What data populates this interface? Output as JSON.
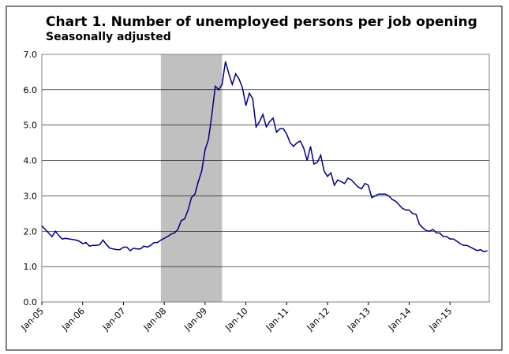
{
  "chart_data": {
    "type": "line",
    "title": "Chart 1. Number of unemployed persons per job opening",
    "subtitle": "Seasonally adjusted",
    "categories": [
      "Jan-05",
      null,
      null,
      null,
      null,
      null,
      null,
      null,
      null,
      null,
      null,
      null,
      "Jan-06",
      null,
      null,
      null,
      null,
      null,
      null,
      null,
      null,
      null,
      null,
      null,
      "Jan-07",
      null,
      null,
      null,
      null,
      null,
      null,
      null,
      null,
      null,
      null,
      null,
      "Jan-08",
      null,
      null,
      null,
      null,
      null,
      null,
      null,
      null,
      null,
      null,
      null,
      "Jan-09",
      null,
      null,
      null,
      null,
      null,
      null,
      null,
      null,
      null,
      null,
      null,
      "Jan-10",
      null,
      null,
      null,
      null,
      null,
      null,
      null,
      null,
      null,
      null,
      null,
      "Jan-11",
      null,
      null,
      null,
      null,
      null,
      null,
      null,
      null,
      null,
      null,
      null,
      "Jan-12",
      null,
      null,
      null,
      null,
      null,
      null,
      null,
      null,
      null,
      null,
      null,
      "Jan-13",
      null,
      null,
      null,
      null,
      null,
      null,
      null,
      null,
      null,
      null,
      null,
      "Jan-14",
      null,
      null,
      null,
      null,
      null,
      null,
      null,
      null,
      null,
      null,
      null,
      "Jan-15",
      null,
      null,
      null,
      null,
      null,
      null,
      null,
      null,
      null,
      null,
      null
    ],
    "values": [
      2.15,
      2.05,
      1.95,
      1.85,
      2.0,
      1.88,
      1.78,
      1.8,
      1.78,
      1.77,
      1.75,
      1.72,
      1.65,
      1.68,
      1.58,
      1.6,
      1.6,
      1.62,
      1.75,
      1.62,
      1.52,
      1.5,
      1.48,
      1.48,
      1.55,
      1.55,
      1.45,
      1.52,
      1.5,
      1.5,
      1.58,
      1.55,
      1.6,
      1.68,
      1.68,
      1.75,
      1.8,
      1.85,
      1.92,
      1.95,
      2.05,
      2.3,
      2.35,
      2.6,
      2.95,
      3.05,
      3.4,
      3.7,
      4.3,
      4.6,
      5.3,
      6.1,
      6.0,
      6.15,
      6.8,
      6.45,
      6.15,
      6.45,
      6.3,
      6.05,
      5.55,
      5.9,
      5.75,
      4.95,
      5.1,
      5.3,
      4.95,
      5.1,
      5.2,
      4.8,
      4.9,
      4.9,
      4.75,
      4.5,
      4.4,
      4.5,
      4.55,
      4.35,
      4.0,
      4.4,
      3.9,
      3.95,
      4.15,
      3.7,
      3.55,
      3.65,
      3.3,
      3.45,
      3.4,
      3.35,
      3.5,
      3.45,
      3.35,
      3.25,
      3.2,
      3.35,
      3.3,
      2.95,
      3.0,
      3.05,
      3.05,
      3.05,
      3.0,
      2.9,
      2.85,
      2.75,
      2.65,
      2.6,
      2.6,
      2.5,
      2.48,
      2.2,
      2.1,
      2.02,
      2.0,
      2.05,
      1.95,
      1.95,
      1.85,
      1.85,
      1.78,
      1.78,
      1.72,
      1.65,
      1.6,
      1.6,
      1.55,
      1.5,
      1.45,
      1.48,
      1.42,
      1.45
    ],
    "color": "#000080",
    "ylim": [
      0,
      7
    ],
    "yticks": [
      {
        "value": 0,
        "label": "0.0"
      },
      {
        "value": 1,
        "label": "1.0"
      },
      {
        "value": 2,
        "label": "2.0"
      },
      {
        "value": 3,
        "label": "3.0"
      },
      {
        "value": 4,
        "label": "4.0"
      },
      {
        "value": 5,
        "label": "5.0"
      },
      {
        "value": 6,
        "label": "6.0"
      },
      {
        "value": 7,
        "label": "7.0"
      }
    ],
    "grid": true
  }
}
